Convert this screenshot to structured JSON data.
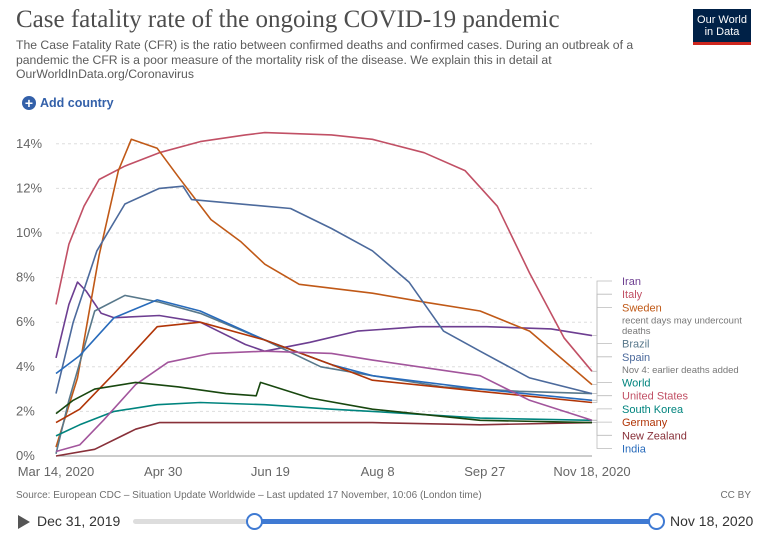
{
  "header": {
    "title": "Case fatality rate of the ongoing COVID-19 pandemic",
    "subtitle": "The Case Fatality Rate (CFR) is the ratio between confirmed deaths and confirmed cases. During an outbreak of a pandemic the CFR is a poor measure of the mortality risk of the disease. We explain this in detail at OurWorldInData.org/Coronavirus",
    "logo_line1": "Our World",
    "logo_line2": "in Data"
  },
  "controls": {
    "add_country_label": "Add country",
    "add_icon": "plus-circle-icon",
    "play_icon": "play-icon"
  },
  "footer": {
    "source": "Source: European CDC – Situation Update Worldwide – Last updated 17 November, 10:06 (London time)",
    "license": "CC BY"
  },
  "timeline": {
    "start_label": "Dec 31, 2019",
    "end_label": "Nov 18, 2020",
    "range_start": "2019-12-31",
    "selected_start": "2020-03-14",
    "selected_end": "2020-11-18"
  },
  "colors": {
    "accent": "#3360a9",
    "logo_bg": "#002147",
    "logo_bar": "#ce261e",
    "slider": "#3f7ad3",
    "iran": "#6d3e91",
    "italy": "#c15065",
    "sweden": "#c05917",
    "brazil": "#58788b",
    "spain": "#4c6a9c",
    "world": "#286bbb",
    "us": "#b13507",
    "south_korea": "#00847e",
    "germany": "#a2559c",
    "new_zealand": "#883039",
    "india": "#18470f"
  },
  "chart_data": {
    "type": "line",
    "title": "Case fatality rate of the ongoing COVID-19 pandemic",
    "x_ticks": [
      "Mar 14, 2020",
      "Apr 30",
      "Jun 19",
      "Aug 8",
      "Sep 27",
      "Nov 18, 2020"
    ],
    "xlim": [
      "2020-03-14",
      "2020-11-18"
    ],
    "y_ticks": [
      "0%",
      "2%",
      "4%",
      "6%",
      "8%",
      "10%",
      "12%",
      "14%"
    ],
    "ylim": [
      0,
      14.5
    ],
    "y_unit": "%",
    "grid": true,
    "legend_placement": "right",
    "series": [
      {
        "name": "Iran",
        "color": "#6d3e91",
        "label_color": "#6d3e91",
        "points": [
          [
            "2020-03-14",
            4.4
          ],
          [
            "2020-03-20",
            6.8
          ],
          [
            "2020-03-24",
            7.8
          ],
          [
            "2020-03-28",
            7.4
          ],
          [
            "2020-04-04",
            6.4
          ],
          [
            "2020-04-10",
            6.2
          ],
          [
            "2020-05-01",
            6.3
          ],
          [
            "2020-05-20",
            6.0
          ],
          [
            "2020-06-10",
            5.0
          ],
          [
            "2020-06-19",
            4.7
          ],
          [
            "2020-07-10",
            5.1
          ],
          [
            "2020-08-01",
            5.6
          ],
          [
            "2020-08-30",
            5.8
          ],
          [
            "2020-09-30",
            5.8
          ],
          [
            "2020-10-30",
            5.7
          ],
          [
            "2020-11-18",
            5.4
          ]
        ]
      },
      {
        "name": "Italy",
        "color": "#c15065",
        "label_color": "#c15065",
        "points": [
          [
            "2020-03-14",
            6.8
          ],
          [
            "2020-03-20",
            9.5
          ],
          [
            "2020-03-27",
            11.2
          ],
          [
            "2020-04-03",
            12.4
          ],
          [
            "2020-04-15",
            13.0
          ],
          [
            "2020-05-01",
            13.6
          ],
          [
            "2020-05-20",
            14.1
          ],
          [
            "2020-06-10",
            14.4
          ],
          [
            "2020-06-19",
            14.5
          ],
          [
            "2020-07-20",
            14.4
          ],
          [
            "2020-08-08",
            14.2
          ],
          [
            "2020-09-01",
            13.6
          ],
          [
            "2020-09-20",
            12.8
          ],
          [
            "2020-10-05",
            11.2
          ],
          [
            "2020-10-20",
            8.2
          ],
          [
            "2020-11-05",
            5.3
          ],
          [
            "2020-11-18",
            3.8
          ]
        ]
      },
      {
        "name": "Sweden",
        "color": "#c05917",
        "label_color": "#c05917",
        "points": [
          [
            "2020-03-14",
            0.4
          ],
          [
            "2020-03-24",
            3.5
          ],
          [
            "2020-04-03",
            9.0
          ],
          [
            "2020-04-12",
            12.8
          ],
          [
            "2020-04-18",
            14.2
          ],
          [
            "2020-04-30",
            13.8
          ],
          [
            "2020-05-10",
            12.5
          ],
          [
            "2020-05-25",
            10.6
          ],
          [
            "2020-06-08",
            9.6
          ],
          [
            "2020-06-19",
            8.6
          ],
          [
            "2020-07-05",
            7.7
          ],
          [
            "2020-08-08",
            7.3
          ],
          [
            "2020-09-01",
            6.9
          ],
          [
            "2020-09-27",
            6.5
          ],
          [
            "2020-10-20",
            5.6
          ],
          [
            "2020-11-18",
            3.2
          ]
        ]
      },
      {
        "name": "Brazil",
        "color": "#58788b",
        "label_color": "#58788b",
        "points": [
          [
            "2020-03-14",
            0.1
          ],
          [
            "2020-03-20",
            2.5
          ],
          [
            "2020-04-01",
            6.5
          ],
          [
            "2020-04-15",
            7.2
          ],
          [
            "2020-05-01",
            6.9
          ],
          [
            "2020-05-20",
            6.4
          ],
          [
            "2020-06-19",
            5.2
          ],
          [
            "2020-07-15",
            4.0
          ],
          [
            "2020-08-08",
            3.6
          ],
          [
            "2020-09-10",
            3.1
          ],
          [
            "2020-10-15",
            2.9
          ],
          [
            "2020-11-18",
            2.8
          ]
        ]
      },
      {
        "name": "Spain",
        "color": "#4c6a9c",
        "label_color": "#4c6a9c",
        "points": [
          [
            "2020-03-14",
            2.8
          ],
          [
            "2020-03-22",
            6.0
          ],
          [
            "2020-04-02",
            9.2
          ],
          [
            "2020-04-15",
            11.3
          ],
          [
            "2020-05-01",
            12.0
          ],
          [
            "2020-05-12",
            12.1
          ],
          [
            "2020-05-16",
            11.5
          ],
          [
            "2020-06-19",
            11.2
          ],
          [
            "2020-07-01",
            11.1
          ],
          [
            "2020-07-20",
            10.2
          ],
          [
            "2020-08-08",
            9.2
          ],
          [
            "2020-08-25",
            7.8
          ],
          [
            "2020-09-10",
            5.6
          ],
          [
            "2020-09-27",
            4.7
          ],
          [
            "2020-10-20",
            3.5
          ],
          [
            "2020-11-18",
            2.8
          ]
        ]
      },
      {
        "name": "World",
        "color": "#286bbb",
        "label_color": "#00847e",
        "points": [
          [
            "2020-03-14",
            3.7
          ],
          [
            "2020-03-25",
            4.5
          ],
          [
            "2020-04-10",
            6.2
          ],
          [
            "2020-04-30",
            7.0
          ],
          [
            "2020-05-20",
            6.5
          ],
          [
            "2020-06-19",
            5.2
          ],
          [
            "2020-07-20",
            4.1
          ],
          [
            "2020-08-08",
            3.6
          ],
          [
            "2020-09-27",
            3.0
          ],
          [
            "2020-11-18",
            2.5
          ]
        ]
      },
      {
        "name": "United States",
        "color": "#b13507",
        "label_color": "#c15065",
        "points": [
          [
            "2020-03-14",
            1.5
          ],
          [
            "2020-03-25",
            2.1
          ],
          [
            "2020-04-10",
            3.7
          ],
          [
            "2020-04-30",
            5.8
          ],
          [
            "2020-05-20",
            6.0
          ],
          [
            "2020-06-19",
            5.2
          ],
          [
            "2020-07-20",
            4.1
          ],
          [
            "2020-08-08",
            3.4
          ],
          [
            "2020-09-27",
            2.9
          ],
          [
            "2020-11-18",
            2.4
          ]
        ]
      },
      {
        "name": "South Korea",
        "color": "#00847e",
        "label_color": "#00847e",
        "points": [
          [
            "2020-03-14",
            0.9
          ],
          [
            "2020-03-25",
            1.4
          ],
          [
            "2020-04-10",
            2.0
          ],
          [
            "2020-04-30",
            2.3
          ],
          [
            "2020-05-20",
            2.4
          ],
          [
            "2020-06-19",
            2.3
          ],
          [
            "2020-07-20",
            2.1
          ],
          [
            "2020-08-08",
            2.0
          ],
          [
            "2020-09-27",
            1.7
          ],
          [
            "2020-11-18",
            1.6
          ]
        ]
      },
      {
        "name": "Germany",
        "color": "#a2559c",
        "label_color": "#b13507",
        "points": [
          [
            "2020-03-14",
            0.2
          ],
          [
            "2020-03-25",
            0.5
          ],
          [
            "2020-04-05",
            1.6
          ],
          [
            "2020-04-20",
            3.2
          ],
          [
            "2020-05-05",
            4.2
          ],
          [
            "2020-05-25",
            4.6
          ],
          [
            "2020-06-19",
            4.7
          ],
          [
            "2020-07-20",
            4.6
          ],
          [
            "2020-08-08",
            4.3
          ],
          [
            "2020-09-27",
            3.6
          ],
          [
            "2020-10-20",
            2.5
          ],
          [
            "2020-11-18",
            1.6
          ]
        ]
      },
      {
        "name": "New Zealand",
        "color": "#883039",
        "label_color": "#883039",
        "points": [
          [
            "2020-03-14",
            0.0
          ],
          [
            "2020-04-01",
            0.3
          ],
          [
            "2020-04-20",
            1.2
          ],
          [
            "2020-05-01",
            1.5
          ],
          [
            "2020-06-19",
            1.5
          ],
          [
            "2020-08-08",
            1.5
          ],
          [
            "2020-09-27",
            1.4
          ],
          [
            "2020-11-18",
            1.5
          ]
        ]
      },
      {
        "name": "India",
        "color": "#18470f",
        "label_color": "#286bbb",
        "points": [
          [
            "2020-03-14",
            1.9
          ],
          [
            "2020-03-22",
            2.5
          ],
          [
            "2020-04-01",
            3.0
          ],
          [
            "2020-04-20",
            3.3
          ],
          [
            "2020-05-10",
            3.1
          ],
          [
            "2020-06-01",
            2.8
          ],
          [
            "2020-06-15",
            2.7
          ],
          [
            "2020-06-17",
            3.3
          ],
          [
            "2020-07-10",
            2.6
          ],
          [
            "2020-08-08",
            2.1
          ],
          [
            "2020-09-27",
            1.6
          ],
          [
            "2020-11-18",
            1.5
          ]
        ]
      }
    ],
    "annotations": [
      {
        "series": "Sweden",
        "text": "recent days may undercount deaths"
      },
      {
        "series": "Spain",
        "text": "Nov 4: earlier deaths added"
      }
    ]
  }
}
